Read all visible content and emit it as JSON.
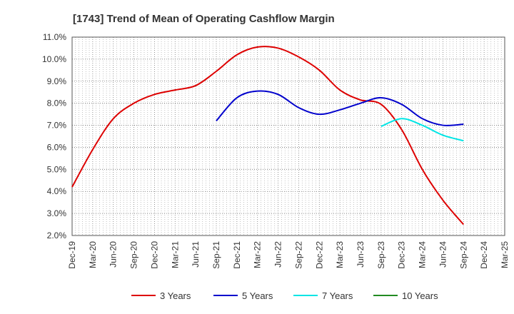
{
  "chart_data": {
    "type": "line",
    "title": "[1743]  Trend of Mean of Operating Cashflow Margin",
    "xlabel": "",
    "ylabel": "",
    "ylim": [
      2.0,
      11.0
    ],
    "y_ticks": [
      "2.0%",
      "3.0%",
      "4.0%",
      "5.0%",
      "6.0%",
      "7.0%",
      "8.0%",
      "9.0%",
      "10.0%",
      "11.0%"
    ],
    "categories": [
      "Dec-19",
      "Mar-20",
      "Jun-20",
      "Sep-20",
      "Dec-20",
      "Mar-21",
      "Jun-21",
      "Sep-21",
      "Dec-21",
      "Mar-22",
      "Jun-22",
      "Sep-22",
      "Dec-22",
      "Mar-23",
      "Jun-23",
      "Sep-23",
      "Dec-23",
      "Mar-24",
      "Jun-24",
      "Sep-24",
      "Dec-24",
      "Mar-25"
    ],
    "grid": true,
    "legend_position": "bottom",
    "series": [
      {
        "name": "3 Years",
        "color": "#dd0000",
        "values": [
          4.2,
          5.9,
          7.3,
          8.0,
          8.4,
          8.6,
          8.8,
          9.45,
          10.2,
          10.55,
          10.5,
          10.1,
          9.5,
          8.6,
          8.15,
          7.95,
          6.8,
          5.0,
          3.6,
          2.5,
          null,
          null
        ]
      },
      {
        "name": "5 Years",
        "color": "#0000cc",
        "values": [
          null,
          null,
          null,
          null,
          null,
          null,
          null,
          7.2,
          8.25,
          8.55,
          8.4,
          7.8,
          7.5,
          7.7,
          8.0,
          8.25,
          7.95,
          7.3,
          7.0,
          7.05,
          null,
          null
        ]
      },
      {
        "name": "7 Years",
        "color": "#00e5e5",
        "values": [
          null,
          null,
          null,
          null,
          null,
          null,
          null,
          null,
          null,
          null,
          null,
          null,
          null,
          null,
          null,
          6.95,
          7.3,
          7.0,
          6.55,
          6.3,
          null,
          null
        ]
      },
      {
        "name": "10 Years",
        "color": "#228b22",
        "values": [
          null,
          null,
          null,
          null,
          null,
          null,
          null,
          null,
          null,
          null,
          null,
          null,
          null,
          null,
          null,
          null,
          null,
          null,
          null,
          null,
          null,
          null
        ]
      }
    ]
  }
}
